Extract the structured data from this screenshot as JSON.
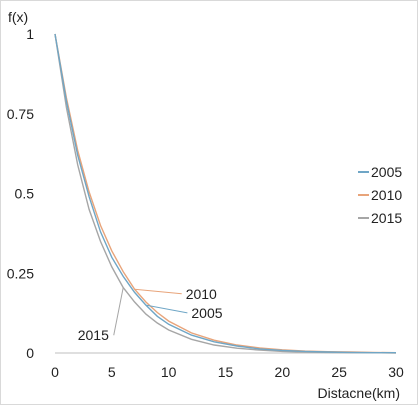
{
  "chart_data": {
    "type": "line",
    "ylabel": "f(x)",
    "xlabel": "Distacne(km)",
    "xlim": [
      0,
      30
    ],
    "ylim": [
      0,
      1
    ],
    "xticks": [
      "0",
      "5",
      "10",
      "15",
      "20",
      "25",
      "30"
    ],
    "yticks": [
      "0",
      "0.25",
      "0.5",
      "0.75",
      "1"
    ],
    "grid": false,
    "legend": "right",
    "x": [
      0,
      1,
      2,
      3,
      4,
      5,
      6,
      7,
      8,
      9,
      10,
      12,
      14,
      16,
      18,
      20,
      22,
      24,
      26,
      28,
      30
    ],
    "series": [
      {
        "name": "2005",
        "color": "#6fa6c6",
        "values": [
          1,
          0.79,
          0.62,
          0.49,
          0.38,
          0.3,
          0.24,
          0.19,
          0.15,
          0.115,
          0.09,
          0.056,
          0.035,
          0.022,
          0.013,
          0.008,
          0.005,
          0.003,
          0.002,
          0.001,
          0.001
        ]
      },
      {
        "name": "2010",
        "color": "#e8a47a",
        "values": [
          1,
          0.8,
          0.635,
          0.505,
          0.4,
          0.32,
          0.255,
          0.2,
          0.16,
          0.127,
          0.1,
          0.063,
          0.04,
          0.025,
          0.016,
          0.01,
          0.006,
          0.004,
          0.003,
          0.002,
          0.001
        ]
      },
      {
        "name": "2015",
        "color": "#a6a6a6",
        "values": [
          1,
          0.77,
          0.59,
          0.45,
          0.35,
          0.27,
          0.205,
          0.16,
          0.122,
          0.094,
          0.072,
          0.043,
          0.025,
          0.015,
          0.009,
          0.005,
          0.003,
          0.002,
          0.001,
          0.001,
          0
        ]
      }
    ],
    "annotations": [
      {
        "text": "2010",
        "x": 11.5,
        "y": 0.17,
        "series": "2010",
        "at_x": 7
      },
      {
        "text": "2005",
        "x": 12,
        "y": 0.11,
        "series": "2005",
        "at_x": 8
      },
      {
        "text": "2015",
        "x": 2,
        "y": 0.04,
        "series": "2015",
        "at_x": 6
      }
    ]
  }
}
